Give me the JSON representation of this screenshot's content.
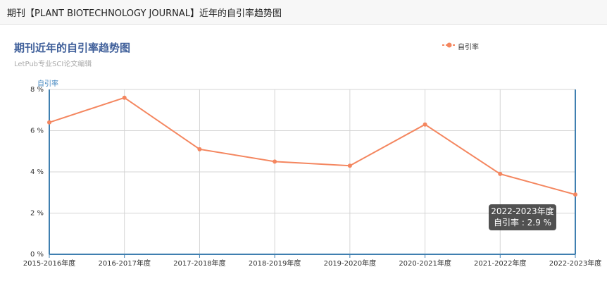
{
  "header": {
    "title": "期刊【PLANT BIOTECHNOLOGY JOURNAL】近年的自引率趋势图"
  },
  "chart_data": {
    "type": "line",
    "title": "期刊近年的自引率趋势图",
    "subtitle": "LetPub专业SCI论文编辑",
    "ylabel": "自引率",
    "xlabel": "",
    "ylim": [
      0,
      8
    ],
    "yticks": [
      0,
      2,
      4,
      6,
      8
    ],
    "ytick_labels": [
      "0 %",
      "2 %",
      "4 %",
      "6 %",
      "8 %"
    ],
    "categories": [
      "2015-2016年度",
      "2016-2017年度",
      "2017-2018年度",
      "2018-2019年度",
      "2019-2020年度",
      "2020-2021年度",
      "2021-2022年度",
      "2022-2023年度"
    ],
    "series": [
      {
        "name": "自引率",
        "values": [
          6.4,
          7.6,
          5.1,
          4.5,
          4.3,
          6.3,
          3.9,
          2.9
        ],
        "color": "#f4865f"
      }
    ],
    "grid": true,
    "legend_position": "top-right"
  },
  "tooltip": {
    "line1": "2022-2023年度",
    "line2": "自引率 : 2.9 %"
  }
}
